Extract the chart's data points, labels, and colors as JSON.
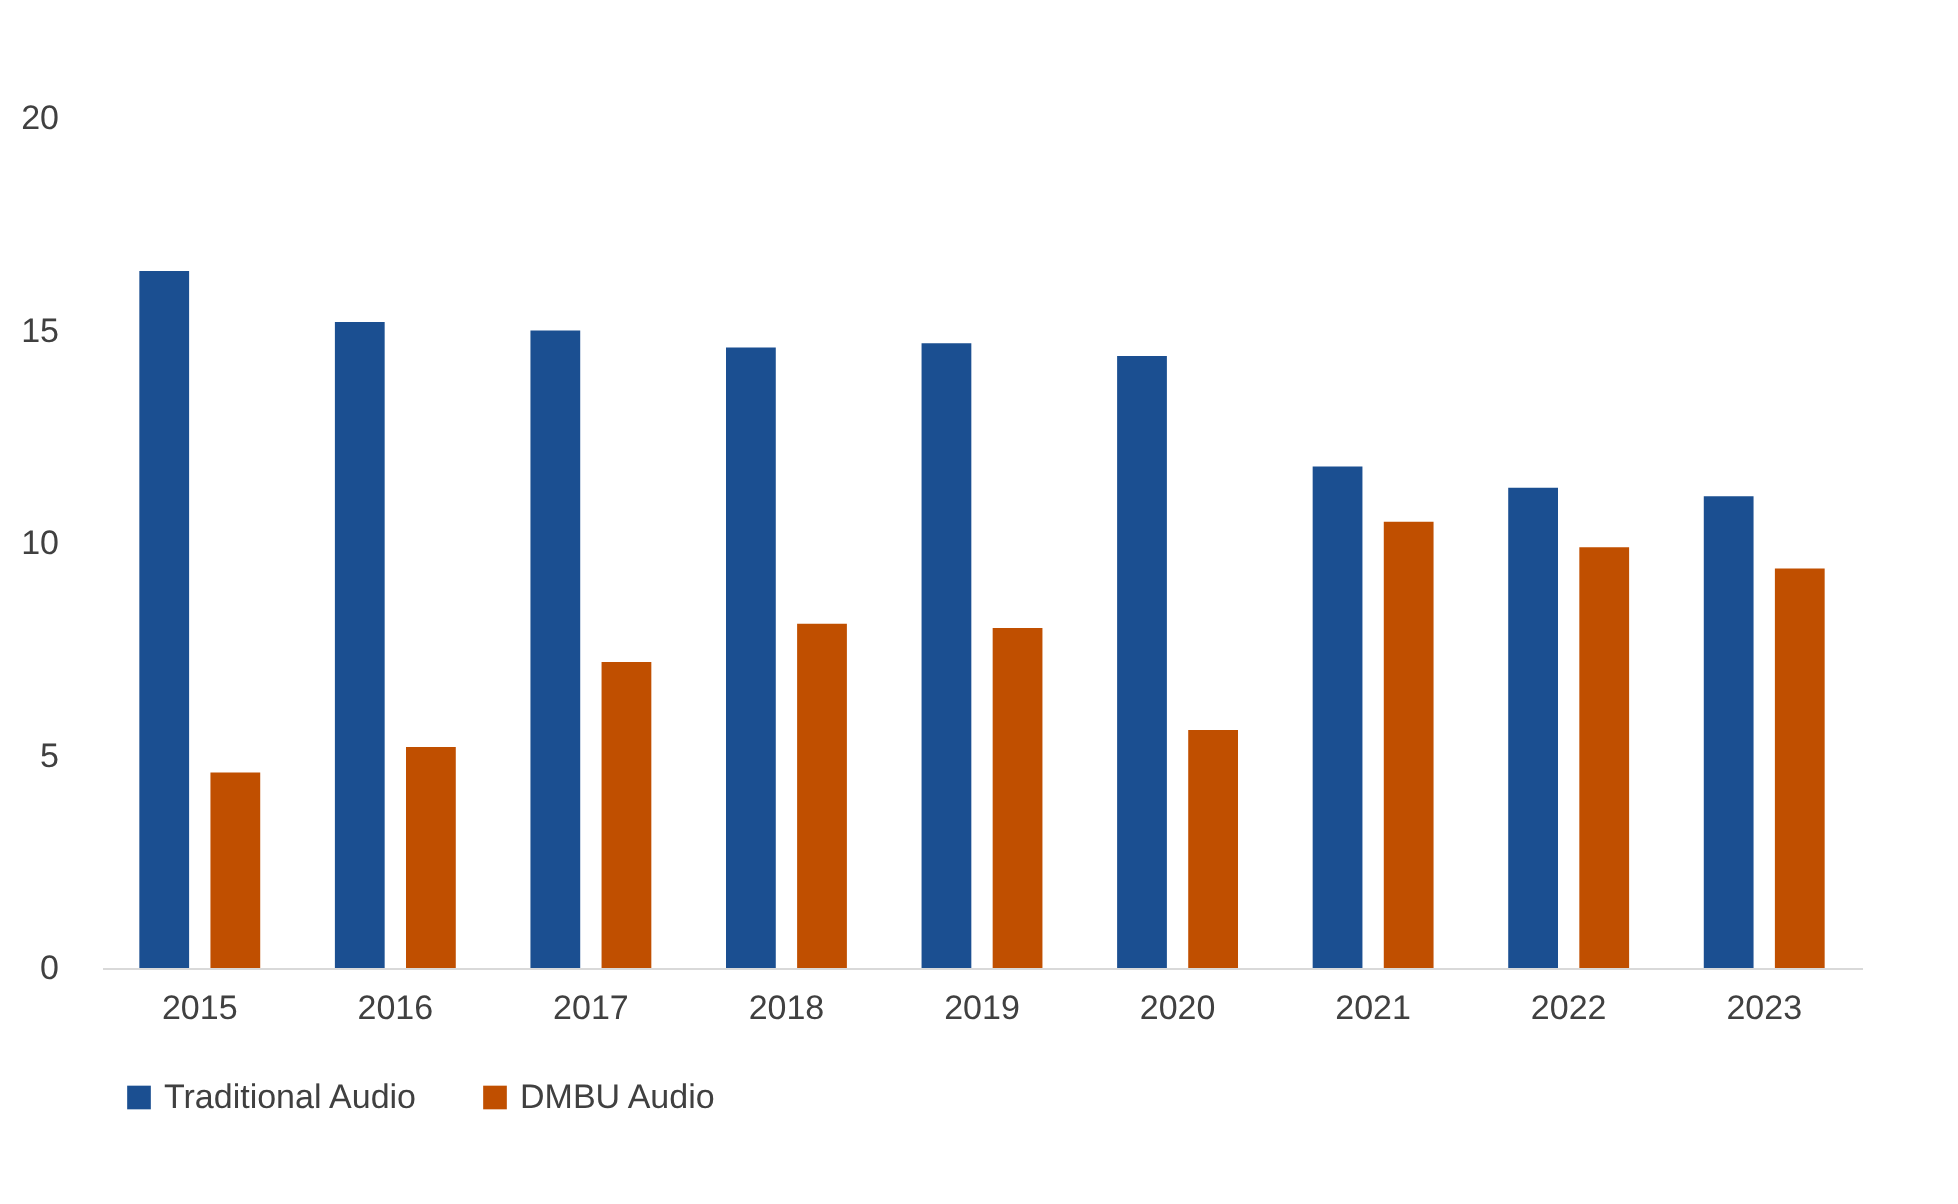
{
  "chart_data": {
    "type": "bar",
    "categories": [
      "2015",
      "2016",
      "2017",
      "2018",
      "2019",
      "2020",
      "2021",
      "2022",
      "2023"
    ],
    "series": [
      {
        "name": "Traditional Audio",
        "color": "#1b4f91",
        "values": [
          16.4,
          15.2,
          15.0,
          14.6,
          14.7,
          14.4,
          11.8,
          11.3,
          11.1
        ]
      },
      {
        "name": "DMBU Audio",
        "color": "#c04f00",
        "values": [
          4.6,
          5.2,
          7.2,
          8.1,
          8.0,
          5.6,
          10.5,
          9.9,
          9.4
        ]
      }
    ],
    "ylim": [
      0,
      20
    ],
    "yticks": [
      0,
      5,
      10,
      15,
      20
    ],
    "legend": "bottom"
  }
}
